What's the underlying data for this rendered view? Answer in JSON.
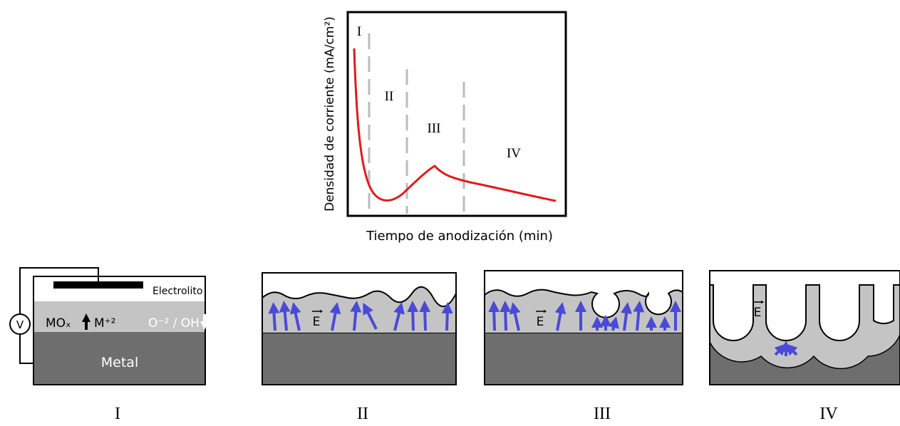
{
  "graph": {
    "y_label": "Densidad de corriente (mA/cm²)",
    "x_label": "Tiempo de anodización (min)",
    "regions": [
      "I",
      "II",
      "III",
      "IV"
    ]
  },
  "panels": [
    {
      "label": "I",
      "electrolyte": "Electrolito",
      "oxide": "MOₓ",
      "cation": "M⁺²",
      "anion": "O⁻² / OH",
      "metal": "Metal",
      "voltmeter": "V"
    },
    {
      "label": "II",
      "field": "E"
    },
    {
      "label": "III",
      "field": "E"
    },
    {
      "label": "IV",
      "field": "E"
    }
  ]
}
